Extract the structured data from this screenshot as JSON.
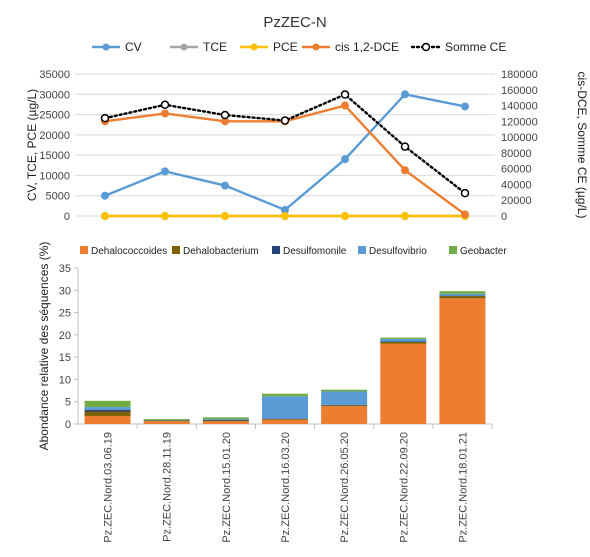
{
  "title": "PzZEC-N",
  "chart_data": [
    {
      "type": "line",
      "x": [
        "Pz.ZEC.Nord.03.06.19",
        "Pz.ZEC.Nord.28.11.19",
        "Pz.ZEC.Nord.15.01.20",
        "Pz.ZEC.Nord.16.03.20",
        "Pz.ZEC.Nord.26.05.20",
        "Pz.ZEC.Nord.22.09.20",
        "Pz.ZEC.Nord.18.01.21"
      ],
      "ylabel_left": "CV, TCE, PCE (µg/L)",
      "ylabel_right": "cis-DCE, Somme CE (µg/L)",
      "ylim_left": [
        0,
        35000
      ],
      "ylim_right": [
        0,
        180000
      ],
      "yticks_left": [
        "0",
        "5000",
        "10000",
        "15000",
        "20000",
        "25000",
        "30000",
        "35000"
      ],
      "yticks_right": [
        "0",
        "20000",
        "40000",
        "60000",
        "80000",
        "100000",
        "120000",
        "140000",
        "160000",
        "180000"
      ],
      "grid": true,
      "legend_position": "top",
      "series": [
        {
          "name": "CV",
          "axis": "left",
          "color": "#5b9bd5",
          "style": "solid",
          "values": [
            5000,
            11000,
            7500,
            1500,
            14000,
            30000,
            27000
          ]
        },
        {
          "name": "TCE",
          "axis": "left",
          "color": "#a5a5a5",
          "style": "solid",
          "values": [
            0,
            0,
            0,
            0,
            0,
            0,
            0
          ]
        },
        {
          "name": "PCE",
          "axis": "left",
          "color": "#ffc000",
          "style": "solid",
          "values": [
            0,
            0,
            0,
            0,
            0,
            0,
            0
          ]
        },
        {
          "name": "cis 1,2-DCE",
          "axis": "right",
          "color": "#ed7d31",
          "style": "solid",
          "values": [
            120000,
            130000,
            120000,
            120000,
            140000,
            58000,
            2000
          ]
        },
        {
          "name": "Somme CE",
          "axis": "right",
          "color": "#000000",
          "style": "dotted",
          "values": [
            124000,
            141000,
            128000,
            121000,
            154000,
            88000,
            29000
          ]
        }
      ]
    },
    {
      "type": "bar",
      "stacked": true,
      "categories": [
        "Pz.ZEC.Nord.03.06.19",
        "Pz.ZEC.Nord.28.11.19",
        "Pz.ZEC.Nord.15.01.20",
        "Pz.ZEC.Nord.16.03.20",
        "Pz.ZEC.Nord.26.05.20",
        "Pz.ZEC.Nord.22.09.20",
        "Pz.ZEC.Nord.18.01.21"
      ],
      "ylabel": "Abondance relative des séquences (%)",
      "ylim": [
        0,
        35
      ],
      "yticks": [
        "0",
        "5",
        "10",
        "15",
        "20",
        "25",
        "30",
        "35"
      ],
      "grid": false,
      "legend_position": "top",
      "series": [
        {
          "name": "Dehalococcoides",
          "color": "#ed7d31",
          "values": [
            1.8,
            0.6,
            0.6,
            1.0,
            4.0,
            18.0,
            28.2
          ]
        },
        {
          "name": "Dehalobacterium",
          "color": "#7f6000",
          "values": [
            1.0,
            0.2,
            0.2,
            0.1,
            0.2,
            0.4,
            0.5
          ]
        },
        {
          "name": "Desulfomonile",
          "color": "#264478",
          "values": [
            0.4,
            0.0,
            0.1,
            0.1,
            0.1,
            0.1,
            0.1
          ]
        },
        {
          "name": "Desulfovibrio",
          "color": "#5b9bd5",
          "values": [
            0.6,
            0.1,
            0.2,
            5.0,
            3.0,
            0.6,
            0.4
          ]
        },
        {
          "name": "Geobacter",
          "color": "#70ad47",
          "values": [
            1.4,
            0.2,
            0.4,
            0.6,
            0.4,
            0.3,
            0.6
          ]
        }
      ]
    }
  ]
}
